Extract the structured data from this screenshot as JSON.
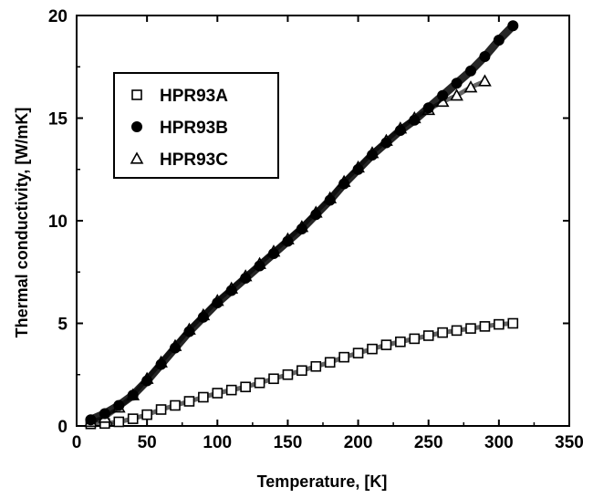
{
  "chart_data": {
    "type": "scatter",
    "title": "",
    "xlabel": "Temperature, [K]",
    "ylabel": "Thermal conductivity, [W/mK]",
    "xlim": [
      0,
      350
    ],
    "ylim": [
      0,
      20
    ],
    "xticks": [
      "0",
      "50",
      "100",
      "150",
      "200",
      "250",
      "300",
      "350"
    ],
    "yticks": [
      "0",
      "5",
      "10",
      "15",
      "20"
    ],
    "grid": false,
    "legend_position": "top-left",
    "series": [
      {
        "name": "HPR93A",
        "marker": "open-square",
        "color": "#000000",
        "x": [
          10,
          20,
          30,
          40,
          50,
          60,
          70,
          80,
          90,
          100,
          110,
          120,
          130,
          140,
          150,
          160,
          170,
          180,
          190,
          200,
          210,
          220,
          230,
          240,
          250,
          260,
          270,
          280,
          290,
          300,
          310
        ],
        "y": [
          0.1,
          0.12,
          0.2,
          0.35,
          0.55,
          0.8,
          1.0,
          1.2,
          1.4,
          1.6,
          1.75,
          1.9,
          2.1,
          2.3,
          2.5,
          2.7,
          2.9,
          3.1,
          3.35,
          3.55,
          3.75,
          3.95,
          4.1,
          4.25,
          4.4,
          4.55,
          4.65,
          4.75,
          4.85,
          4.95,
          5.0
        ]
      },
      {
        "name": "HPR93B",
        "marker": "filled-circle",
        "color": "#000000",
        "x": [
          10,
          20,
          30,
          40,
          50,
          60,
          70,
          80,
          90,
          100,
          110,
          120,
          130,
          140,
          150,
          160,
          170,
          180,
          190,
          200,
          210,
          220,
          230,
          240,
          250,
          260,
          270,
          280,
          290,
          300,
          310
        ],
        "y": [
          0.3,
          0.6,
          1.0,
          1.5,
          2.2,
          3.0,
          3.8,
          4.6,
          5.3,
          6.0,
          6.6,
          7.2,
          7.8,
          8.4,
          9.0,
          9.6,
          10.3,
          11.0,
          11.8,
          12.5,
          13.2,
          13.8,
          14.4,
          14.9,
          15.5,
          16.1,
          16.7,
          17.3,
          18.0,
          18.8,
          19.5
        ]
      },
      {
        "name": "HPR93C",
        "marker": "open-triangle",
        "color": "#000000",
        "x": [
          10,
          20,
          30,
          40,
          50,
          60,
          70,
          80,
          90,
          100,
          110,
          120,
          130,
          140,
          150,
          160,
          170,
          180,
          190,
          200,
          210,
          220,
          230,
          240,
          250,
          260,
          270,
          280,
          290
        ],
        "y": [
          0.2,
          0.4,
          0.9,
          1.5,
          2.3,
          3.1,
          3.9,
          4.7,
          5.4,
          6.1,
          6.7,
          7.3,
          7.9,
          8.5,
          9.1,
          9.7,
          10.4,
          11.1,
          11.9,
          12.6,
          13.3,
          13.9,
          14.5,
          15.0,
          15.4,
          15.8,
          16.1,
          16.5,
          16.8
        ]
      }
    ]
  }
}
